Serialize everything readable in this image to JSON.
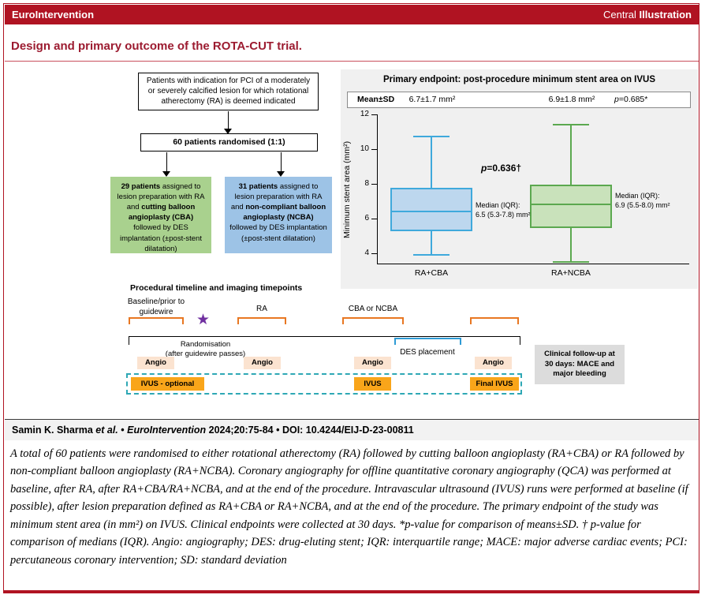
{
  "header": {
    "journal": "EuroIntervention",
    "label_segments": [
      {
        "text": "Central ",
        "bold": false
      },
      {
        "text": "Illustration",
        "bold": true
      }
    ]
  },
  "title": "Design and primary outcome of the ROTA-CUT trial.",
  "flowchart": {
    "top_box": "Patients with indication for PCI of a moderately or severely calcified lesion for which rotational atherectomy (RA) is deemed indicated",
    "randomised": "60 patients randomised (1:1)",
    "cba_segments": [
      {
        "text": "29 patients",
        "bold": true
      },
      {
        "text": " assigned to lesion preparation with RA and ",
        "bold": false
      },
      {
        "text": "cutting balloon angioplasty (CBA)",
        "bold": true
      },
      {
        "text": " followed by DES implantation (±post-stent dilatation)",
        "bold": false
      }
    ],
    "ncba_segments": [
      {
        "text": "31 patients",
        "bold": true
      },
      {
        "text": " assigned to lesion preparation with RA and ",
        "bold": false
      },
      {
        "text": "non-compliant balloon angioplasty (NCBA)",
        "bold": true
      },
      {
        "text": " followed by DES implantation (±post-stent dilatation)",
        "bold": false
      }
    ]
  },
  "chart_data": {
    "type": "boxplot",
    "title": "Primary endpoint: post-procedure minimum stent area on IVUS",
    "ylabel": "Minimum stent area (mm²)",
    "ylim": [
      4,
      12
    ],
    "yticks": [
      4,
      6,
      8,
      10,
      12
    ],
    "stats_row": {
      "label": "Mean±SD",
      "group1_mean_sd": "6.7±1.7 mm²",
      "group2_mean_sd": "6.9±1.8 mm²",
      "p_value": "p=0.685*"
    },
    "median_p_value": "p=0.636†",
    "groups": [
      {
        "label": "RA+CBA",
        "whisker_low": 4.0,
        "q1": 5.3,
        "median": 6.5,
        "q3": 7.8,
        "whisker_high": 10.8,
        "median_label": [
          "Median (IQR):",
          "6.5 (5.3-7.8) mm²"
        ]
      },
      {
        "label": "RA+NCBA",
        "whisker_low": 3.6,
        "q1": 5.5,
        "median": 6.9,
        "q3": 8.0,
        "whisker_high": 11.5,
        "median_label": [
          "Median (IQR):",
          "6.9 (5.5-8.0) mm²"
        ]
      }
    ]
  },
  "timeline": {
    "heading": "Procedural timeline and imaging timepoints",
    "baseline_label": "Baseline/prior to guidewire",
    "star": "★",
    "ra_label": "RA",
    "cba_label": "CBA or NCBA",
    "rand_line1": "Randomisation",
    "rand_line2": "(after guidewire passes)",
    "des_label": "DES placement",
    "angio": "Angio",
    "ivus_optional": "IVUS - optional",
    "ivus": "IVUS",
    "final_ivus": "Final IVUS",
    "followup": "Clinical follow-up at 30 days: MACE and major bleeding"
  },
  "citation_segments": [
    {
      "text": "Samin K. Sharma ",
      "italic": false
    },
    {
      "text": "et al.",
      "italic": true
    },
    {
      "text": " • ",
      "italic": false
    },
    {
      "text": "EuroIntervention",
      "italic": true
    },
    {
      "text": " 2024;20:75-84 • DOI: 10.4244/EIJ-D-23-00811",
      "italic": false
    }
  ],
  "caption": "A total of 60 patients were randomised to either rotational atherectomy (RA) followed by cutting balloon angioplasty (RA+CBA) or RA followed by non-compliant balloon angioplasty (RA+NCBA). Coronary angiography for offline quantitative coronary angiography (QCA) was performed at baseline, after RA, after RA+CBA/RA+NCBA, and at the end of the procedure. Intravascular ultrasound (IVUS) runs were performed at baseline (if possible), after lesion preparation defined as RA+CBA or RA+NCBA, and at the end of the procedure. The primary endpoint of the study was minimum stent area (in mm²) on IVUS. Clinical endpoints were collected at 30 days. *p-value for comparison of means±SD. † p-value for comparison of medians (IQR). Angio: angiography; DES: drug-eluting stent; IQR: interquartile range; MACE: major adverse cardiac events; PCI: percutaneous coronary intervention; SD: standard deviation",
  "colors": {
    "brand_red": "#B01322",
    "arm_green": "#A9D18E",
    "arm_blue": "#9DC3E6",
    "box_blue_fill": "#BDD7EE",
    "box_blue_stroke": "#3FA9DC",
    "box_green_fill": "#C9E2BB",
    "box_green_stroke": "#5BA84F",
    "timeline_orange": "#E87722",
    "ivus_orange": "#F9A51A",
    "angio_peach": "#FBE3D0",
    "dash_teal": "#2EA8B5",
    "star_purple": "#7030A0",
    "panel_gray": "#F0F0F0"
  }
}
